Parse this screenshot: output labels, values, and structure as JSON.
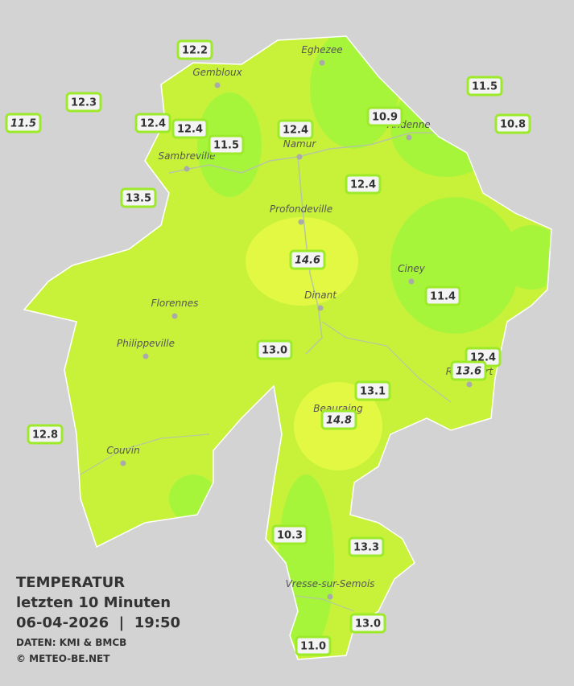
{
  "map": {
    "legend": {
      "title": "TEMPERATUR",
      "period": "letzten 10 Minuten",
      "datetime": "06-04-2026  |  19:50",
      "source": "DATEN: KMI & BMCB",
      "copyright": "© METEO-BE.NET"
    },
    "cities": [
      "Eghezee",
      "Gembloux",
      "Andenne",
      "Namur",
      "Sambreville",
      "Profondeville",
      "Ciney",
      "Dinant",
      "Florennes",
      "Philippeville",
      "Couvin",
      "Vresse-sur-Semois",
      "Beauraing",
      "Rochefort"
    ],
    "stations": [
      {
        "value": "12.2",
        "italic": false
      },
      {
        "value": "12.3",
        "italic": false
      },
      {
        "value": "11.5",
        "italic": true
      },
      {
        "value": "12.4",
        "italic": false
      },
      {
        "value": "12.4",
        "italic": false
      },
      {
        "value": "11.5",
        "italic": false
      },
      {
        "value": "12.4",
        "italic": false
      },
      {
        "value": "10.9",
        "italic": false
      },
      {
        "value": "11.5",
        "italic": false
      },
      {
        "value": "10.8",
        "italic": false
      },
      {
        "value": "13.5",
        "italic": false
      },
      {
        "value": "12.4",
        "italic": false
      },
      {
        "value": "14.6",
        "italic": true
      },
      {
        "value": "11.4",
        "italic": false
      },
      {
        "value": "13.0",
        "italic": false
      },
      {
        "value": "12.4",
        "italic": false
      },
      {
        "value": "13.6",
        "italic": true
      },
      {
        "value": "13.1",
        "italic": false
      },
      {
        "value": "14.8",
        "italic": true
      },
      {
        "value": "12.8",
        "italic": false
      },
      {
        "value": "10.3",
        "italic": false
      },
      {
        "value": "13.3",
        "italic": false
      },
      {
        "value": "13.0",
        "italic": false
      },
      {
        "value": "11.0",
        "italic": false
      }
    ]
  }
}
